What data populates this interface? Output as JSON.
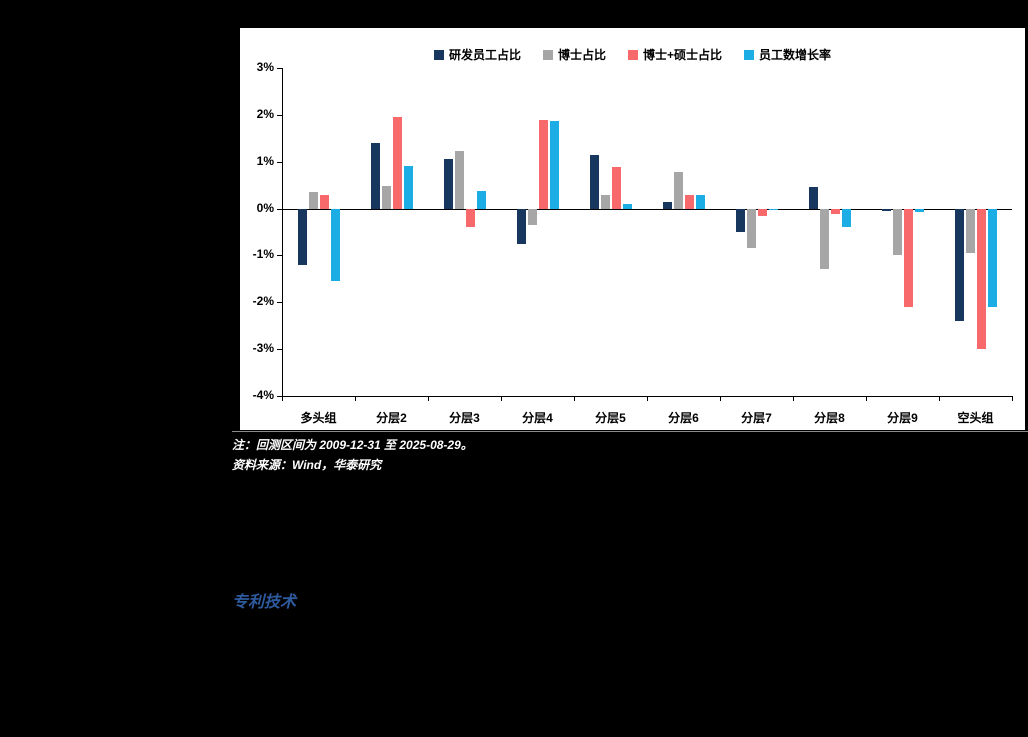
{
  "chart": {
    "note": "注：回测区间为 2009-12-31 至 2025-08-29。",
    "source": "资料来源：Wind，华泰研究"
  },
  "section_heading": "专利技术",
  "chart_data": {
    "type": "bar",
    "title": "",
    "categories": [
      "多头组",
      "分层2",
      "分层3",
      "分层4",
      "分层5",
      "分层6",
      "分层7",
      "分层8",
      "分层9",
      "空头组"
    ],
    "series": [
      {
        "name": "研发员工占比",
        "color": "#17375e",
        "values": [
          -1.2,
          1.4,
          1.05,
          -0.75,
          1.15,
          0.15,
          -0.5,
          0.45,
          -0.05,
          -2.4
        ]
      },
      {
        "name": "博士占比",
        "color": "#a6a6a6",
        "values": [
          0.35,
          0.48,
          1.22,
          -0.35,
          0.3,
          0.78,
          -0.85,
          -1.3,
          -1.0,
          -0.95
        ]
      },
      {
        "name": "博士+硕士占比",
        "color": "#f8696b",
        "values": [
          0.28,
          1.95,
          -0.4,
          1.9,
          0.88,
          0.3,
          -0.15,
          -0.12,
          -2.1,
          -3.0
        ]
      },
      {
        "name": "员工数增长率",
        "color": "#1cade4",
        "values": [
          -1.55,
          0.9,
          0.38,
          1.87,
          0.1,
          0.28,
          -0.03,
          -0.4,
          -0.07,
          -2.1
        ]
      }
    ],
    "ylim": [
      -4,
      3
    ],
    "yticks": [
      {
        "value": 3,
        "label": "3%"
      },
      {
        "value": 2,
        "label": "2%"
      },
      {
        "value": 1,
        "label": "1%"
      },
      {
        "value": 0,
        "label": "0%"
      },
      {
        "value": -1,
        "label": "-1%"
      },
      {
        "value": -2,
        "label": "-2%"
      },
      {
        "value": -3,
        "label": "-3%"
      },
      {
        "value": -4,
        "label": "-4%"
      }
    ],
    "xlabel": "",
    "ylabel": "",
    "grid": false,
    "legend_position": "top"
  }
}
